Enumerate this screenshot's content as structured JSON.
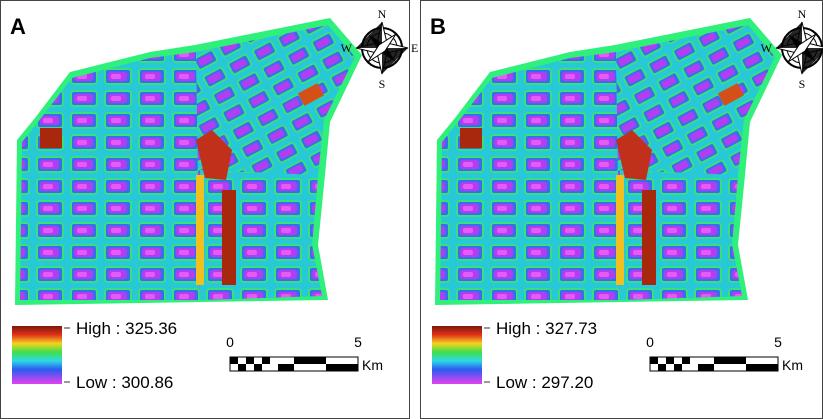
{
  "panels": [
    {
      "label": "A",
      "compass": {
        "n": "N",
        "s": "S",
        "w": "W",
        "e": "E"
      },
      "legend": {
        "high": "High : 325.36",
        "low": "Low : 300.86"
      },
      "scale": {
        "start": "0",
        "end": "5",
        "unit": "Km"
      }
    },
    {
      "label": "B",
      "compass": {
        "n": "N",
        "s": "S",
        "w": "W"
      },
      "legend": {
        "high": "High : 327.73",
        "low": "Low : 297.20"
      },
      "scale": {
        "start": "0",
        "end": "5",
        "unit": "Km"
      }
    }
  ]
}
